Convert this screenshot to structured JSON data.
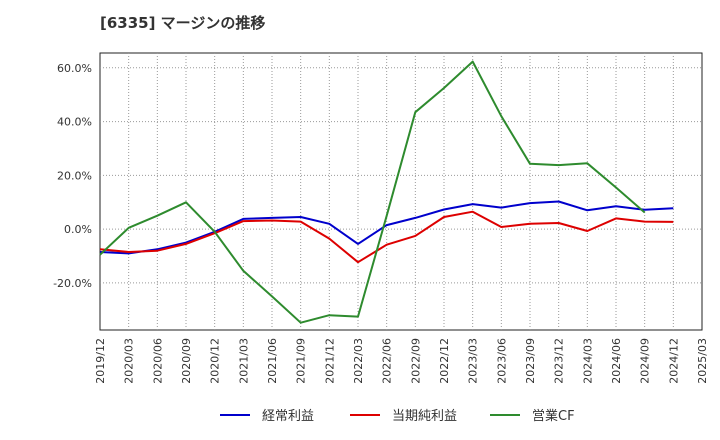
{
  "title": "[6335]  マージンの推移",
  "chart_data": {
    "type": "line",
    "title": "[6335]  マージンの推移",
    "xlabel": "",
    "ylabel": "",
    "x_ticks": [
      "2019/12",
      "2020/03",
      "2020/06",
      "2020/09",
      "2020/12",
      "2021/03",
      "2021/06",
      "2021/09",
      "2021/12",
      "2022/03",
      "2022/06",
      "2022/09",
      "2022/12",
      "2023/03",
      "2023/06",
      "2023/09",
      "2023/12",
      "2024/03",
      "2024/06",
      "2024/09",
      "2024/12",
      "2025/03"
    ],
    "y_ticks": [
      -20,
      0,
      20,
      40,
      60
    ],
    "y_tick_labels": [
      "-20.0%",
      "0.0%",
      "20.0%",
      "40.0%",
      "60.0%"
    ],
    "ylim": [
      -37.5,
      65.5
    ],
    "grid": true,
    "legend_position": "bottom",
    "series": [
      {
        "name": "経常利益",
        "color": "#0000cc",
        "x": [
          "2019/12",
          "2020/03",
          "2020/06",
          "2020/09",
          "2020/12",
          "2021/03",
          "2021/06",
          "2021/09",
          "2021/12",
          "2022/03",
          "2022/06",
          "2022/09",
          "2022/12",
          "2023/03",
          "2023/06",
          "2023/09",
          "2023/12",
          "2024/03",
          "2024/06",
          "2024/09",
          "2024/12"
        ],
        "values": [
          -8.5,
          -9.0,
          -7.5,
          -5.0,
          -1.0,
          3.8,
          4.2,
          4.5,
          2.0,
          -5.5,
          1.5,
          4.2,
          7.3,
          9.3,
          8.0,
          9.7,
          10.3,
          7.0,
          8.5,
          7.2,
          7.8
        ]
      },
      {
        "name": "当期純利益",
        "color": "#dd0000",
        "x": [
          "2019/12",
          "2020/03",
          "2020/06",
          "2020/09",
          "2020/12",
          "2021/03",
          "2021/06",
          "2021/09",
          "2021/12",
          "2022/03",
          "2022/06",
          "2022/09",
          "2022/12",
          "2023/03",
          "2023/06",
          "2023/09",
          "2023/12",
          "2024/03",
          "2024/06",
          "2024/09",
          "2024/12"
        ],
        "values": [
          -7.5,
          -8.5,
          -8.0,
          -5.5,
          -1.5,
          3.0,
          3.2,
          2.8,
          -3.5,
          -12.3,
          -5.8,
          -2.5,
          4.5,
          6.5,
          0.8,
          2.0,
          2.3,
          -0.7,
          4.0,
          2.8,
          2.7
        ]
      },
      {
        "name": "営業CF",
        "color": "#2e8b2e",
        "x": [
          "2019/12",
          "2020/03",
          "2020/06",
          "2020/09",
          "2020/12",
          "2021/03",
          "2021/06",
          "2021/09",
          "2021/12",
          "2022/03",
          "2022/06",
          "2022/09",
          "2022/12",
          "2023/03",
          "2023/06",
          "2023/09",
          "2023/12",
          "2024/03",
          "2024/06",
          "2024/09"
        ],
        "values": [
          -9.5,
          0.5,
          5.0,
          10.0,
          -1.0,
          -15.5,
          -25.0,
          -34.8,
          -32.0,
          -32.5,
          5.0,
          43.5,
          52.5,
          62.3,
          42.0,
          24.3,
          23.8,
          24.5,
          15.5,
          6.2
        ]
      }
    ]
  }
}
